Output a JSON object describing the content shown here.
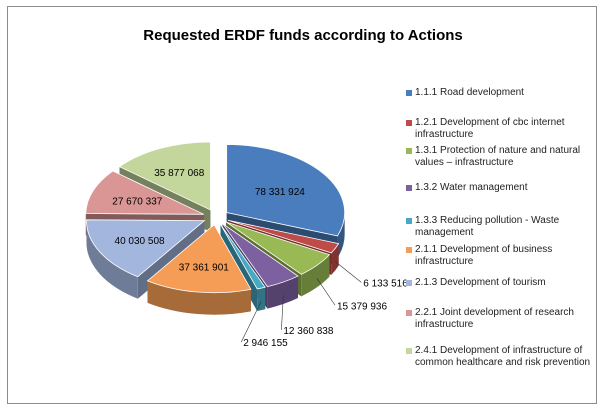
{
  "chart_data": {
    "type": "pie",
    "title": "Requested ERDF funds according to Actions",
    "legend_position": "right",
    "three_d": true,
    "exploded": true,
    "slices": [
      {
        "label": "1.1.1 Road development",
        "value": 78331924,
        "value_label": "78 331 924",
        "color": "#4a7dbd"
      },
      {
        "label": "1.2.1 Development of cbc internet infrastructure",
        "value": 6133516,
        "value_label": "6 133 516",
        "color": "#be4b48"
      },
      {
        "label": "1.3.1 Protection of nature and  natural values –  infrastructure",
        "value": 15379936,
        "value_label": "15 379 936",
        "color": "#98b954"
      },
      {
        "label": "1.3.2 Water management",
        "value": 12360838,
        "value_label": "12 360 838",
        "color": "#7d60a0"
      },
      {
        "label": "1.3.3 Reducing pollution - Waste management",
        "value": 2946155,
        "value_label": "2 946 155",
        "color": "#46aac5"
      },
      {
        "label": "2.1.1 Development of business infrastructure",
        "value": 37361901,
        "value_label": "37 361 901",
        "color": "#f59d56"
      },
      {
        "label": "2.1.3 Development of tourism",
        "value": 40030508,
        "value_label": "40 030 508",
        "color": "#a3b7de"
      },
      {
        "label": "2.2.1 Joint development of research infrastructure",
        "value": 27670337,
        "value_label": "27 670 337",
        "color": "#d99694"
      },
      {
        "label": "2.4.1 Development of infrastructure  of common healthcare and risk prevention",
        "value": 35877068,
        "value_label": "35 877 068",
        "color": "#c3d69b"
      }
    ]
  }
}
